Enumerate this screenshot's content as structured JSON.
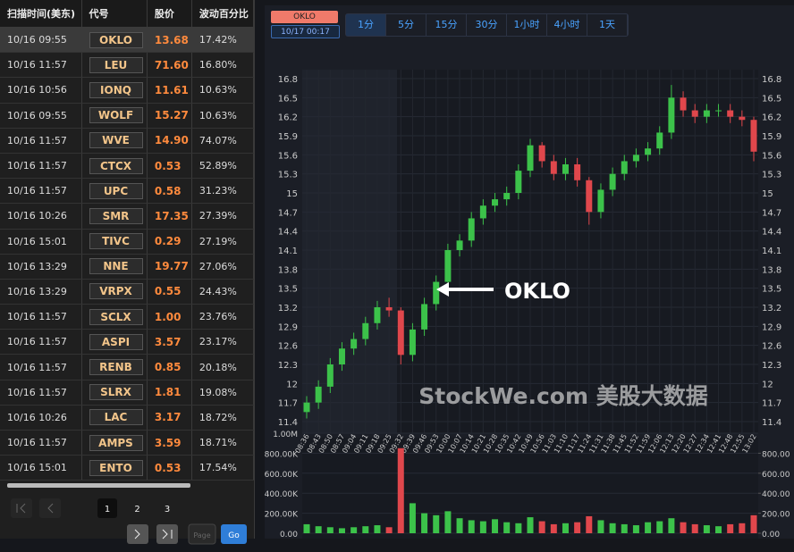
{
  "table": {
    "headers": [
      "扫描时间(美东)",
      "代号",
      "股价",
      "波动百分比"
    ],
    "rows": [
      [
        "10/16 09:55",
        "OKLO",
        "13.68",
        "17.42%"
      ],
      [
        "10/16 11:57",
        "LEU",
        "71.60",
        "16.80%"
      ],
      [
        "10/16 10:56",
        "IONQ",
        "11.61",
        "10.63%"
      ],
      [
        "10/16 09:55",
        "WOLF",
        "15.27",
        "10.63%"
      ],
      [
        "10/16 11:57",
        "WVE",
        "14.90",
        "74.07%"
      ],
      [
        "10/16 11:57",
        "CTCX",
        "0.53",
        "52.89%"
      ],
      [
        "10/16 11:57",
        "UPC",
        "0.58",
        "31.23%"
      ],
      [
        "10/16 10:26",
        "SMR",
        "17.35",
        "27.39%"
      ],
      [
        "10/16 15:01",
        "TIVC",
        "0.29",
        "27.19%"
      ],
      [
        "10/16 13:29",
        "NNE",
        "19.77",
        "27.06%"
      ],
      [
        "10/16 13:29",
        "VRPX",
        "0.55",
        "24.43%"
      ],
      [
        "10/16 11:57",
        "SCLX",
        "1.00",
        "23.76%"
      ],
      [
        "10/16 11:57",
        "ASPI",
        "3.57",
        "23.17%"
      ],
      [
        "10/16 11:57",
        "RENB",
        "0.85",
        "20.18%"
      ],
      [
        "10/16 11:57",
        "SLRX",
        "1.81",
        "19.08%"
      ],
      [
        "10/16 10:26",
        "LAC",
        "3.17",
        "18.72%"
      ],
      [
        "10/16 11:57",
        "AMPS",
        "3.59",
        "18.71%"
      ],
      [
        "10/16 15:01",
        "ENTO",
        "0.53",
        "17.54%"
      ]
    ]
  },
  "pagination": {
    "pages": [
      "1",
      "2",
      "3"
    ],
    "page_placeholder": "Page",
    "go": "Go"
  },
  "toolbar": {
    "symbol": "OKLO",
    "timestamp": "10/17 00:17",
    "intervals": [
      "1分",
      "5分",
      "15分",
      "30分",
      "1小时",
      "4小时",
      "1天"
    ],
    "active_interval": 0
  },
  "chart_data": [
    {
      "type": "candlestick",
      "annotation": "OKLO",
      "watermark": "StockWe.com 美股大数据",
      "x": [
        "08:36",
        "08:43",
        "08:50",
        "08:57",
        "09:04",
        "09:11",
        "09:18",
        "09:25",
        "09:32",
        "09:39",
        "09:46",
        "09:53",
        "10:00",
        "10:07",
        "10:14",
        "10:21",
        "10:28",
        "10:35",
        "10:42",
        "10:49",
        "10:56",
        "11:03",
        "11:10",
        "11:17",
        "11:24",
        "11:31",
        "11:38",
        "11:45",
        "11:52",
        "11:59",
        "12:06",
        "12:13",
        "12:20",
        "12:27",
        "12:34",
        "12:41",
        "12:48",
        "12:55",
        "13:02"
      ],
      "open": [
        11.55,
        11.7,
        11.95,
        12.3,
        12.55,
        12.7,
        12.95,
        13.2,
        13.15,
        12.45,
        12.85,
        13.25,
        13.6,
        14.1,
        14.25,
        14.6,
        14.8,
        14.9,
        15.0,
        15.35,
        15.75,
        15.5,
        15.3,
        15.45,
        15.2,
        14.7,
        15.05,
        15.3,
        15.5,
        15.6,
        15.7,
        15.95,
        16.5,
        16.3,
        16.2,
        16.3,
        16.3,
        16.2,
        16.15
      ],
      "high": [
        11.8,
        12.05,
        12.4,
        12.65,
        12.8,
        13.05,
        13.3,
        13.35,
        13.2,
        12.95,
        13.35,
        13.7,
        14.2,
        14.35,
        14.7,
        14.9,
        15.0,
        15.1,
        15.45,
        15.85,
        15.8,
        15.6,
        15.55,
        15.55,
        15.25,
        15.15,
        15.4,
        15.6,
        15.7,
        15.8,
        16.05,
        16.7,
        16.6,
        16.4,
        16.4,
        16.4,
        16.4,
        16.3,
        16.2
      ],
      "low": [
        11.45,
        11.6,
        11.85,
        12.2,
        12.45,
        12.6,
        12.85,
        13.05,
        12.3,
        12.35,
        12.75,
        13.15,
        13.5,
        14.0,
        14.15,
        14.5,
        14.7,
        14.8,
        14.9,
        15.25,
        15.4,
        15.2,
        15.2,
        15.1,
        14.5,
        14.6,
        14.95,
        15.2,
        15.4,
        15.5,
        15.6,
        15.85,
        16.2,
        16.1,
        16.1,
        16.2,
        16.1,
        16.05,
        15.5
      ],
      "close": [
        11.7,
        11.95,
        12.3,
        12.55,
        12.7,
        12.95,
        13.2,
        13.15,
        12.45,
        12.85,
        13.25,
        13.6,
        14.1,
        14.25,
        14.6,
        14.8,
        14.9,
        15.0,
        15.35,
        15.75,
        15.5,
        15.3,
        15.45,
        15.2,
        14.7,
        15.05,
        15.3,
        15.5,
        15.6,
        15.7,
        15.95,
        16.5,
        16.3,
        16.2,
        16.3,
        16.3,
        16.2,
        16.15,
        15.65
      ],
      "ylim": [
        11.4,
        16.8
      ],
      "yticks": [
        11.4,
        11.7,
        12,
        12.3,
        12.6,
        12.9,
        13.2,
        13.5,
        13.8,
        14.1,
        14.4,
        14.7,
        15,
        15.3,
        15.6,
        15.9,
        16.2,
        16.5,
        16.8
      ],
      "up_color": "#3cc24a",
      "down_color": "#e0474c",
      "grid": true
    },
    {
      "type": "bar",
      "values": [
        90000,
        70000,
        60000,
        50000,
        60000,
        70000,
        80000,
        60000,
        850000,
        300000,
        200000,
        180000,
        220000,
        150000,
        130000,
        120000,
        140000,
        110000,
        100000,
        160000,
        120000,
        90000,
        100000,
        110000,
        170000,
        130000,
        100000,
        90000,
        80000,
        110000,
        120000,
        150000,
        110000,
        90000,
        80000,
        70000,
        90000,
        100000,
        180000
      ],
      "ylim": [
        0,
        1000000
      ],
      "yticks": [
        {
          "value": 0,
          "label": "0.00"
        },
        {
          "value": 200000,
          "label": "200.00K"
        },
        {
          "value": 400000,
          "label": "400.00K"
        },
        {
          "value": 600000,
          "label": "600.00K"
        },
        {
          "value": 800000,
          "label": "800.00K"
        },
        {
          "value": 1000000,
          "label": "1.00M"
        }
      ],
      "y2lim": [
        0,
        1000
      ],
      "y2ticks": [
        {
          "value": 0,
          "label": "0.00"
        },
        {
          "value": 200,
          "label": "200.00"
        },
        {
          "value": 400,
          "label": "400.00"
        },
        {
          "value": 600,
          "label": "600.00"
        },
        {
          "value": 800,
          "label": "800.00"
        }
      ]
    }
  ]
}
